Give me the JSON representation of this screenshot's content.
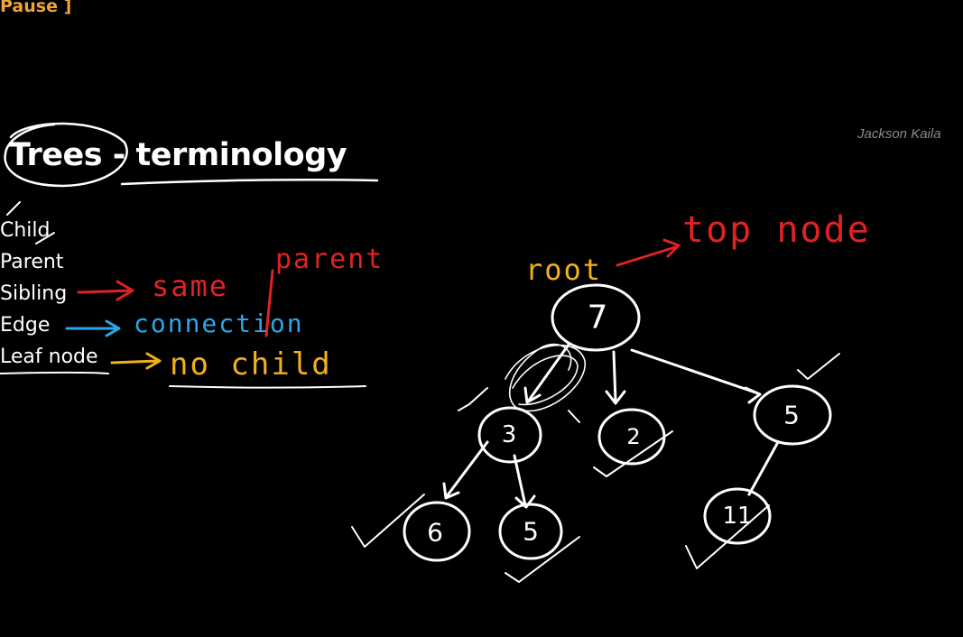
{
  "overlay": {
    "pause_label": "Pause ]"
  },
  "watermark": "Jackson Kaila",
  "title": "Trees - terminology",
  "terms": [
    {
      "label": "Child"
    },
    {
      "label": "Parent"
    },
    {
      "label": "Sibling"
    },
    {
      "label": "Edge"
    },
    {
      "label": "Leaf node"
    }
  ],
  "annotations": {
    "sibling_note": "same",
    "sibling_note_2": "parent",
    "edge_note": "connection",
    "leaf_note": "no child",
    "root_label": "root",
    "root_note": "top node"
  },
  "colors": {
    "red": "#e02222",
    "blue": "#2aa7e8",
    "yellow": "#f2b01a",
    "white": "#ffffff"
  },
  "tree": {
    "nodes": [
      {
        "id": "n7",
        "label": "7"
      },
      {
        "id": "n3",
        "label": "3"
      },
      {
        "id": "n2",
        "label": "2"
      },
      {
        "id": "n5a",
        "label": "5"
      },
      {
        "id": "n6",
        "label": "6"
      },
      {
        "id": "n5b",
        "label": "5"
      },
      {
        "id": "n11",
        "label": "11"
      }
    ]
  }
}
